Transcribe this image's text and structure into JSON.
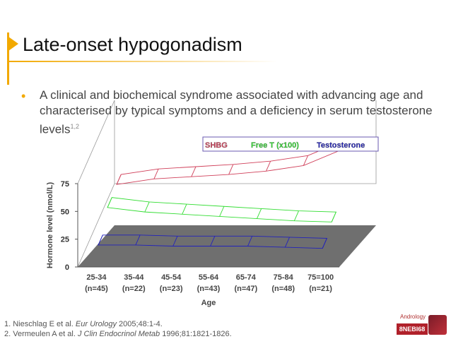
{
  "slide": {
    "title": "Late-onset hypogonadism",
    "bullet": "•",
    "body_text": "A clinical and biochemical syndrome associated with advancing age and characterised by typical symptoms and a deficiency in serum testosterone levels",
    "body_sup": "1,2",
    "ref1_prefix": "1. Nieschlag E et al. ",
    "ref1_journal": "Eur Urology",
    "ref1_suffix": " 2005;48:1-4.",
    "ref2_prefix": "2. Vermeulen A et al. ",
    "ref2_journal": "J Clin Endocrinol Metab",
    "ref2_suffix": " 1996;81:1821-1826.",
    "brand": "Andrology",
    "code": "8NEBI68"
  },
  "colors": {
    "accent": "#f2a900",
    "shbg": "#d0405a",
    "free_t": "#33dd33",
    "testosterone": "#2222bb",
    "floor": "#6f6f6f"
  },
  "chart_data": {
    "type": "line",
    "xlabel": "Age",
    "ylabel": "Hormone level (nmol/L)",
    "categories": [
      "25-34",
      "35-44",
      "45-54",
      "55-64",
      "65-74",
      "75-84",
      "75=100"
    ],
    "category_counts": [
      "(n=45)",
      "(n=22)",
      "(n=23)",
      "(n=43)",
      "(n=47)",
      "(n=48)",
      "(n=21)"
    ],
    "yticks": [
      0,
      25,
      50,
      75
    ],
    "ylim": [
      0,
      75
    ],
    "legend_position": "top-right",
    "series": [
      {
        "name": "SHBG",
        "values": [
          33,
          38,
          40,
          42,
          45,
          50,
          64
        ]
      },
      {
        "name": "Free T (x100)",
        "values": [
          31,
          27,
          25,
          23,
          21,
          19,
          18
        ]
      },
      {
        "name": "Testosterone",
        "values": [
          16,
          16,
          15,
          15,
          15,
          14,
          13
        ]
      }
    ]
  }
}
